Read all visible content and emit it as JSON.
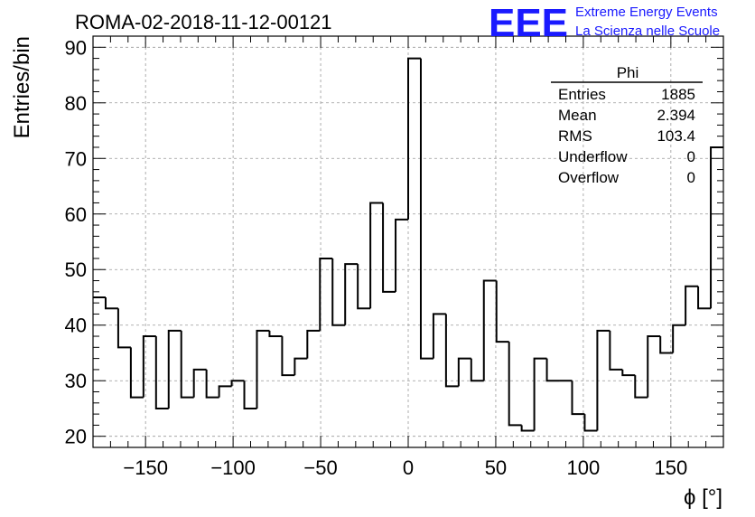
{
  "chart_data": {
    "type": "bar",
    "title": "ROMA-02-2018-11-12-00121",
    "xlabel": "ϕ [°]",
    "ylabel": "Entries/bin",
    "xlim": [
      -180,
      180
    ],
    "ylim": [
      18,
      92
    ],
    "grid": true,
    "bin_width": 7.2,
    "x_ticks": [
      -150,
      -100,
      -50,
      0,
      50,
      100,
      150
    ],
    "y_ticks": [
      20,
      30,
      40,
      50,
      60,
      70,
      80,
      90
    ],
    "values": [
      45,
      43,
      36,
      27,
      38,
      25,
      39,
      27,
      32,
      27,
      29,
      30,
      25,
      39,
      38,
      31,
      34,
      39,
      52,
      40,
      51,
      43,
      62,
      46,
      59,
      88,
      34,
      42,
      29,
      34,
      30,
      48,
      37,
      22,
      21,
      34,
      30,
      30,
      24,
      21,
      39,
      32,
      31,
      27,
      38,
      35,
      40,
      47,
      43,
      72
    ],
    "stats": {
      "title": "Phi",
      "rows": [
        {
          "label": "Entries",
          "value": "1885"
        },
        {
          "label": "Mean",
          "value": "2.394"
        },
        {
          "label": "RMS",
          "value": "103.4"
        },
        {
          "label": "Underflow",
          "value": "0"
        },
        {
          "label": "Overflow",
          "value": "0"
        }
      ]
    },
    "logo": {
      "mark": "EEE",
      "line1": "Extreme Energy Events",
      "line2": "La Scienza nelle Scuole",
      "color": "#1a1aff"
    }
  }
}
